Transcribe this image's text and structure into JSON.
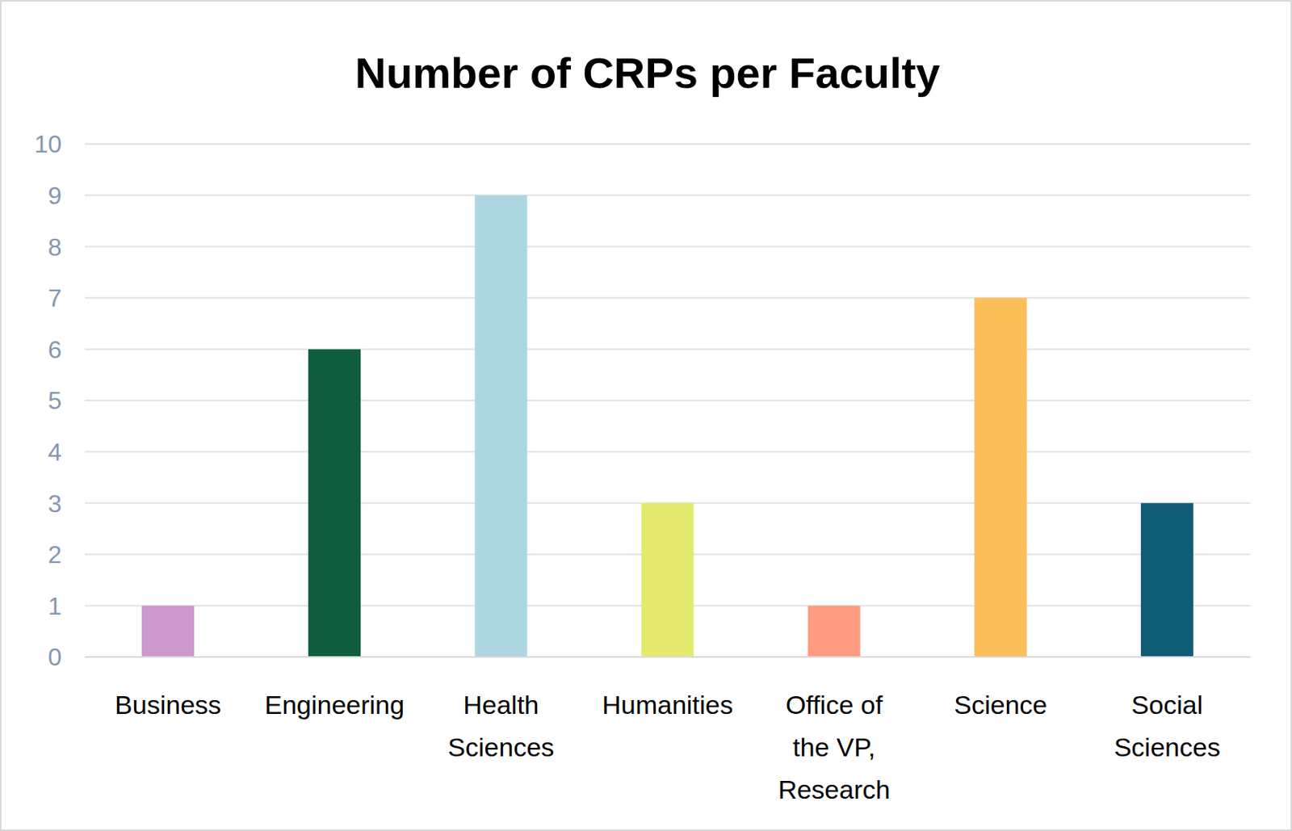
{
  "chart_data": {
    "type": "bar",
    "title": "Number of CRPs per Faculty",
    "categories": [
      "Business",
      "Engineering",
      "Health Sciences",
      "Humanities",
      "Office of the VP, Research",
      "Science",
      "Social Sciences"
    ],
    "values": [
      1,
      6,
      9,
      3,
      1,
      7,
      3
    ],
    "colors": [
      "#CC99CC",
      "#0F5C3E",
      "#ADD6E1",
      "#E3EA6E",
      "#FF9B80",
      "#FBBF5A",
      "#0F5C75"
    ],
    "ylim": [
      0,
      10
    ],
    "yticks": [
      0,
      1,
      2,
      3,
      4,
      5,
      6,
      7,
      8,
      9,
      10
    ],
    "grid": true
  }
}
